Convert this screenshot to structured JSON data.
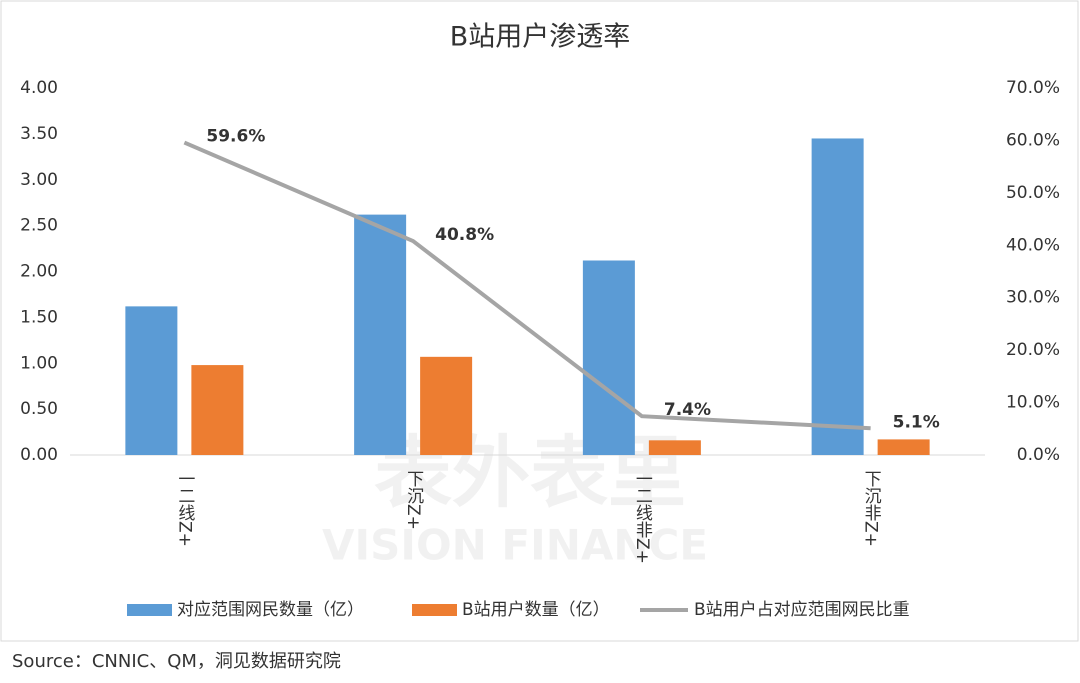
{
  "chart_data": {
    "type": "combo",
    "title": "B站用户渗透率",
    "categories": [
      "一二线Z+",
      "下沉Z+",
      "一二线非Z+",
      "下沉非Z+"
    ],
    "series": [
      {
        "name": "对应范围网民数量（亿）",
        "type": "bar",
        "color": "#5b9bd5",
        "values": [
          1.62,
          2.62,
          2.12,
          3.45
        ]
      },
      {
        "name": "B站用户数量（亿）",
        "type": "bar",
        "color": "#ed7d31",
        "values": [
          0.98,
          1.07,
          0.16,
          0.17
        ]
      },
      {
        "name": "B站用户占对应范围网民比重",
        "type": "line",
        "axis": "y2",
        "color": "#a5a5a5",
        "values": [
          59.6,
          40.8,
          7.4,
          5.1
        ],
        "value_labels": [
          "59.6%",
          "40.8%",
          "7.4%",
          "5.1%"
        ]
      }
    ],
    "ylim": [
      0,
      4
    ],
    "yticks": [
      {
        "value": 0,
        "label": "0.00"
      },
      {
        "value": 0.5,
        "label": "0.50"
      },
      {
        "value": 1,
        "label": "1.00"
      },
      {
        "value": 1.5,
        "label": "1.50"
      },
      {
        "value": 2,
        "label": "2.00"
      },
      {
        "value": 2.5,
        "label": "2.50"
      },
      {
        "value": 3,
        "label": "3.00"
      },
      {
        "value": 3.5,
        "label": "3.50"
      },
      {
        "value": 4,
        "label": "4.00"
      }
    ],
    "y2lim": [
      0,
      70
    ],
    "y2ticks": [
      {
        "value": 0,
        "label": "0.0%"
      },
      {
        "value": 10,
        "label": "10.0%"
      },
      {
        "value": 20,
        "label": "20.0%"
      },
      {
        "value": 30,
        "label": "30.0%"
      },
      {
        "value": 40,
        "label": "40.0%"
      },
      {
        "value": 50,
        "label": "50.0%"
      },
      {
        "value": 60,
        "label": "60.0%"
      },
      {
        "value": 70,
        "label": "70.0%"
      }
    ],
    "grid": false,
    "legend": "bottom",
    "watermark": [
      "表外表里",
      "VISION FINANCE"
    ],
    "source": "Source：CNNIC、QM，洞见数据研究院"
  }
}
